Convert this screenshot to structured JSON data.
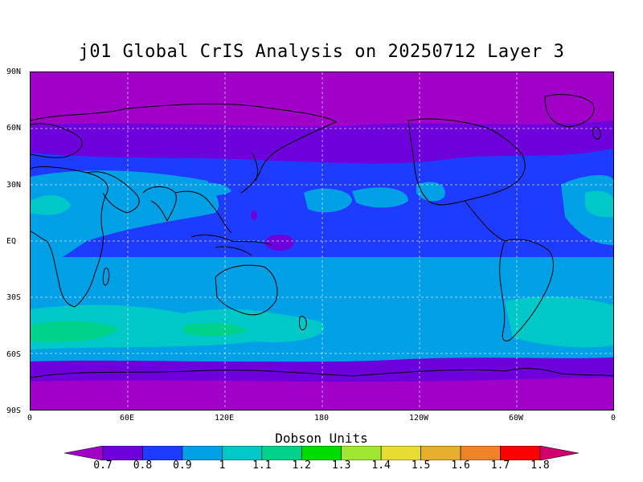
{
  "title": "j01 Global CrIS Analysis on 20250712 Layer 3",
  "map": {
    "lat_labels": [
      "90N",
      "60N",
      "30N",
      "EQ",
      "30S",
      "60S",
      "90S"
    ],
    "lon_labels": [
      "0",
      "60E",
      "120E",
      "180",
      "120W",
      "60W",
      "0"
    ],
    "grid": true
  },
  "colorbar": {
    "title": "Dobson Units",
    "levels": [
      "0.7",
      "0.8",
      "0.9",
      "1",
      "1.1",
      "1.2",
      "1.3",
      "1.4",
      "1.5",
      "1.6",
      "1.7",
      "1.8"
    ],
    "colors": [
      "#a000c8",
      "#6e00dc",
      "#1e3cff",
      "#00a0e6",
      "#00c8c8",
      "#00d28c",
      "#00dc00",
      "#a0e632",
      "#e6dc32",
      "#e6af2d",
      "#f08228",
      "#fa0000",
      "#d2006e"
    ]
  }
}
